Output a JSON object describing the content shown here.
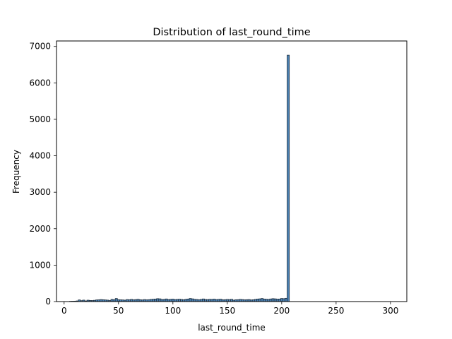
{
  "chart_data": {
    "type": "bar",
    "title": "Distribution of last_round_time",
    "xlabel": "last_round_time",
    "ylabel": "Frequency",
    "xlim": [
      -7,
      315
    ],
    "ylim": [
      0,
      7150
    ],
    "x_ticks": [
      0,
      50,
      100,
      150,
      200,
      250,
      300
    ],
    "y_ticks": [
      0,
      1000,
      2000,
      3000,
      4000,
      5000,
      6000,
      7000
    ],
    "bin_start": 5,
    "bin_width": 2,
    "bar_color": "#4a7fb0",
    "edge_color": "#1f2f3f",
    "values": [
      8,
      10,
      12,
      18,
      45,
      25,
      40,
      18,
      38,
      30,
      28,
      35,
      45,
      48,
      55,
      50,
      45,
      40,
      28,
      60,
      50,
      85,
      52,
      48,
      45,
      40,
      55,
      50,
      60,
      48,
      55,
      62,
      50,
      45,
      55,
      48,
      52,
      60,
      65,
      70,
      80,
      75,
      58,
      60,
      72,
      55,
      62,
      68,
      55,
      60,
      65,
      58,
      50,
      62,
      70,
      85,
      75,
      62,
      58,
      50,
      60,
      72,
      58,
      55,
      62,
      60,
      68,
      55,
      60,
      65,
      48,
      52,
      58,
      55,
      62,
      40,
      50,
      52,
      60,
      55,
      48,
      52,
      55,
      45,
      50,
      60,
      70,
      75,
      85,
      70,
      65,
      60,
      72,
      80,
      75,
      68,
      70,
      85,
      80,
      90,
      6760
    ],
    "grid": false
  }
}
